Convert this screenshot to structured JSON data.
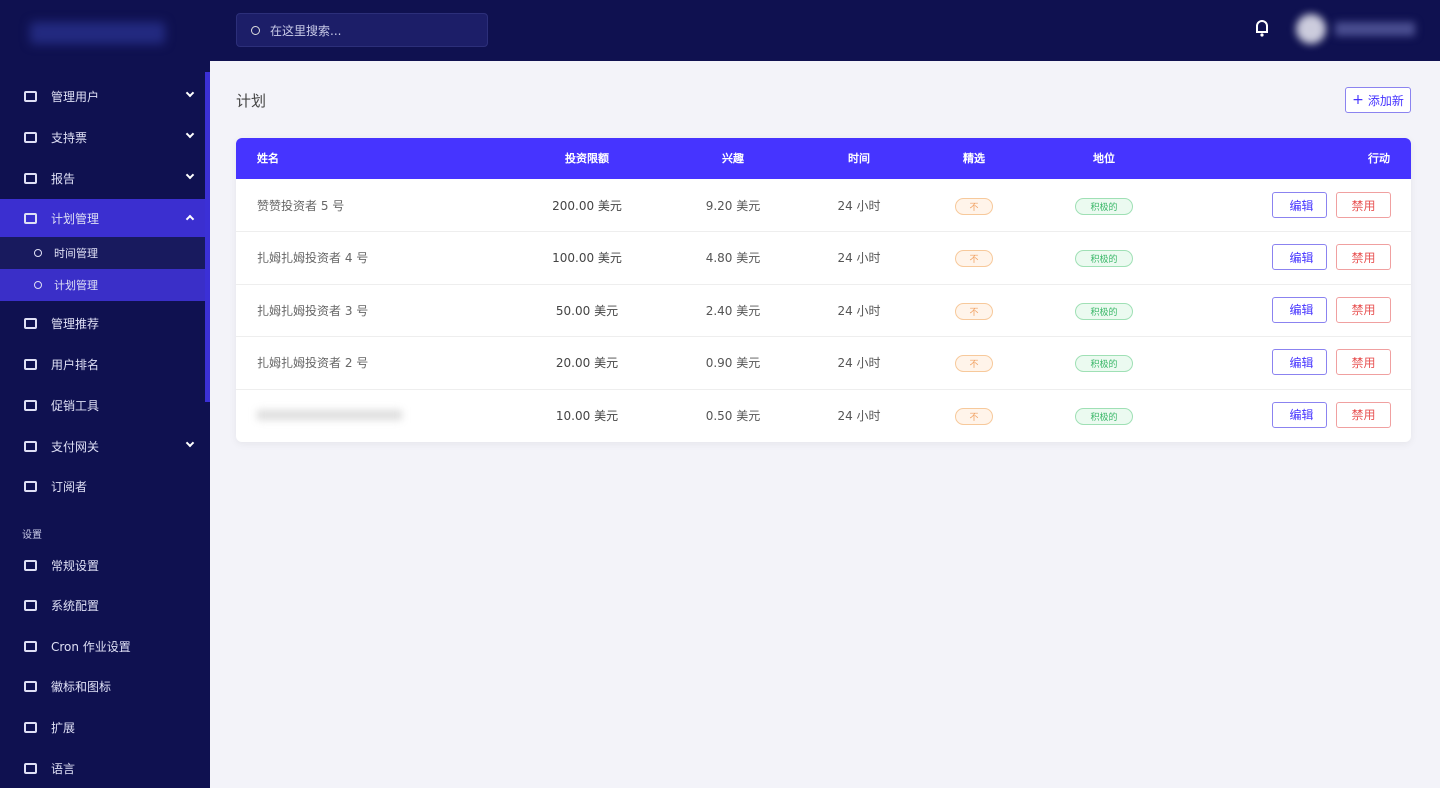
{
  "search": {
    "placeholder": "在这里搜索..."
  },
  "sidebar": {
    "menu": [
      {
        "label": "管理用户"
      },
      {
        "label": "支持票"
      },
      {
        "label": "报告"
      },
      {
        "label": "计划管理",
        "submenu": [
          "时间管理",
          "计划管理"
        ]
      },
      {
        "label": "管理推荐"
      },
      {
        "label": "用户排名"
      },
      {
        "label": "促销工具"
      },
      {
        "label": "支付网关"
      },
      {
        "label": "订阅者"
      }
    ],
    "section": "设置",
    "settings": [
      "常规设置",
      "系统配置",
      "Cron 作业设置",
      "徽标和图标",
      "扩展",
      "语言"
    ]
  },
  "page": {
    "title": "计划",
    "add_button": "添加新"
  },
  "table": {
    "headers": [
      "姓名",
      "投资限额",
      "兴趣",
      "时间",
      "精选",
      "地位",
      "行动"
    ],
    "rows": [
      {
        "name": "赞赞投资者 5 号",
        "limit": "200.00 美元",
        "interest": "9.20 美元",
        "time": "24 小时",
        "featured": "不",
        "status": "积极的"
      },
      {
        "name": "扎姆扎姆投资者 4 号",
        "limit": "100.00 美元",
        "interest": "4.80 美元",
        "time": "24 小时",
        "featured": "不",
        "status": "积极的"
      },
      {
        "name": "扎姆扎姆投资者 3 号",
        "limit": "50.00 美元",
        "interest": "2.40 美元",
        "time": "24 小时",
        "featured": "不",
        "status": "积极的"
      },
      {
        "name": "扎姆扎姆投资者 2 号",
        "limit": "20.00 美元",
        "interest": "0.90 美元",
        "time": "24 小时",
        "featured": "不",
        "status": "积极的"
      },
      {
        "limit": "10.00 美元",
        "interest": "0.50 美元",
        "time": "24 小时",
        "featured": "不",
        "status": "积极的"
      }
    ],
    "actions": {
      "edit": "编辑",
      "disable": "禁用"
    }
  }
}
